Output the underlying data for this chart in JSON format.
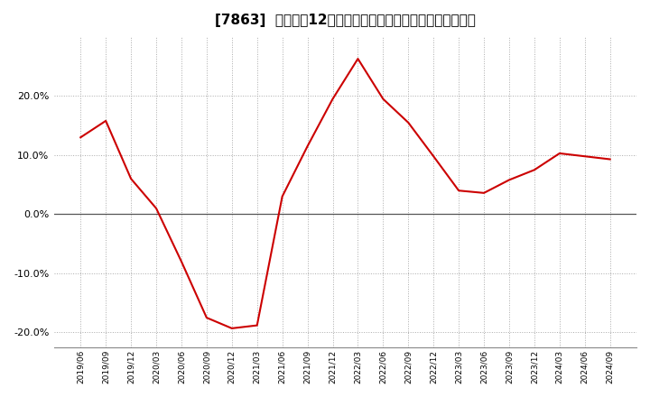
{
  "title": "[7863]  売上高の12か月移動合計の対前年同期増減率の推移",
  "line_color": "#cc0000",
  "background_color": "#ffffff",
  "plot_background_color": "#ffffff",
  "grid_color": "#aaaaaa",
  "ylim": [
    -0.225,
    0.3
  ],
  "yticks": [
    -0.2,
    -0.1,
    0.0,
    0.1,
    0.2
  ],
  "dates": [
    "2019/06",
    "2019/09",
    "2019/12",
    "2020/03",
    "2020/06",
    "2020/09",
    "2020/12",
    "2021/03",
    "2021/06",
    "2021/09",
    "2021/12",
    "2022/03",
    "2022/06",
    "2022/09",
    "2022/12",
    "2023/03",
    "2023/06",
    "2023/09",
    "2023/12",
    "2024/03",
    "2024/06",
    "2024/09"
  ],
  "values": [
    0.13,
    0.158,
    0.06,
    0.01,
    -0.08,
    -0.175,
    -0.193,
    -0.188,
    0.03,
    0.115,
    0.195,
    0.263,
    0.195,
    0.155,
    0.098,
    0.04,
    0.036,
    0.058,
    0.075,
    0.103,
    0.098,
    0.093
  ]
}
